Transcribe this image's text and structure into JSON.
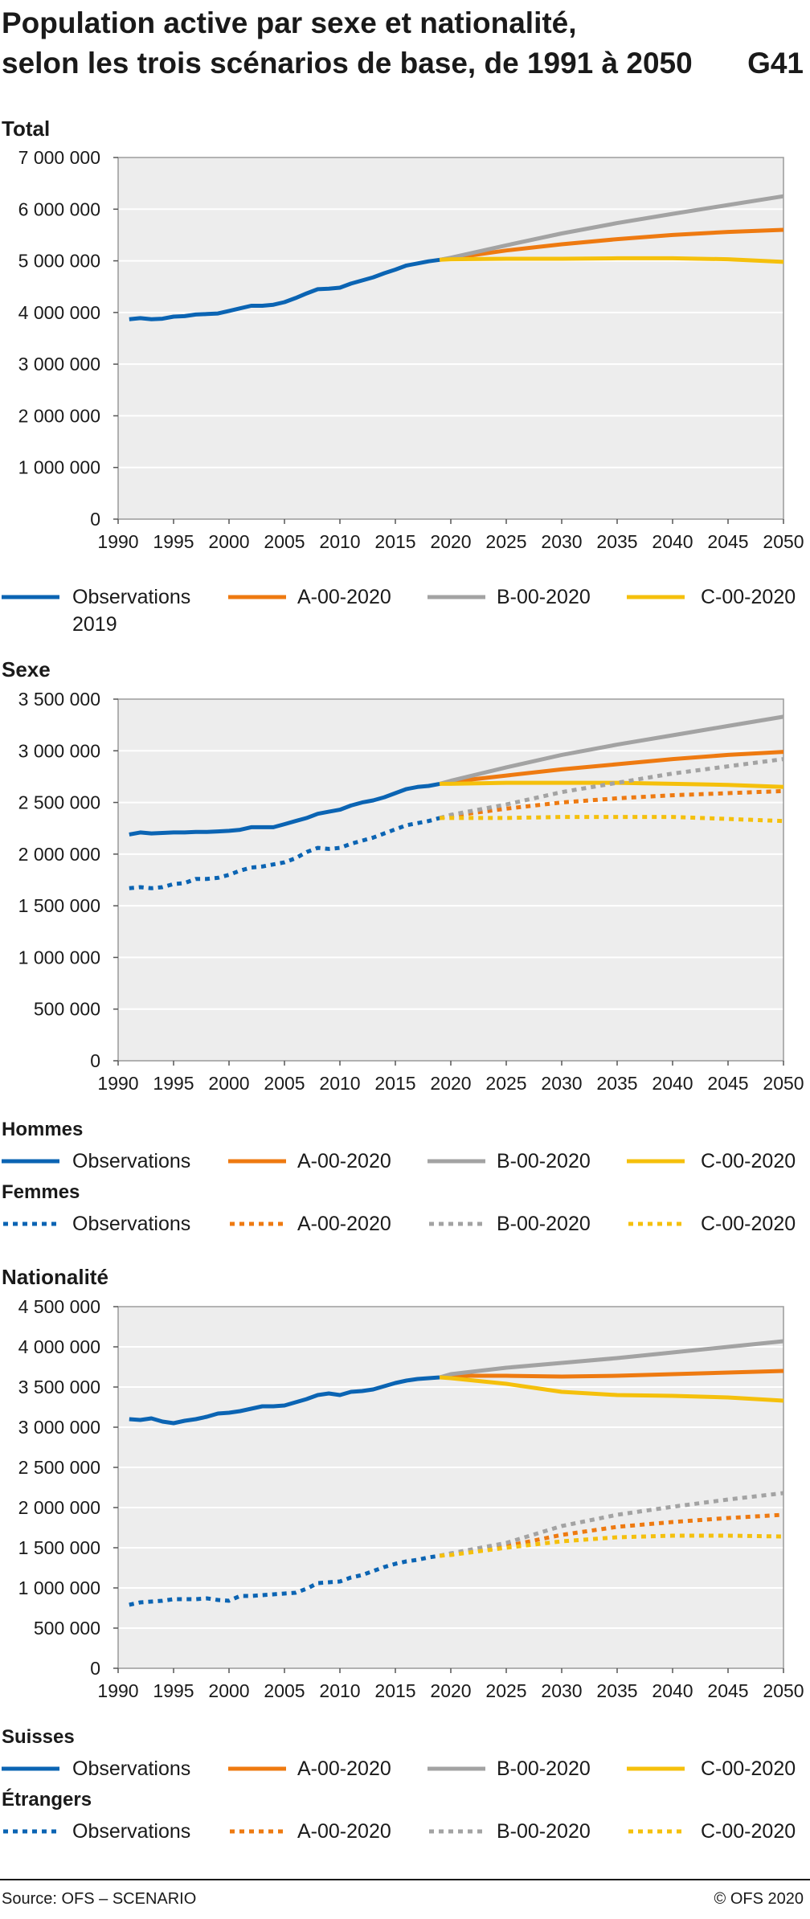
{
  "header": {
    "title_line1": "Population active par sexe et nationalité,",
    "title_line2": "selon les trois scénarios de base, de 1991 à 2050",
    "code": "G41"
  },
  "colors": {
    "observations": "#0b64b3",
    "A": "#ee7a11",
    "B": "#a3a3a3",
    "C": "#f5c00c",
    "plot_bg": "#ededed",
    "grid": "#ffffff"
  },
  "chart_data": [
    {
      "type": "line",
      "title": "Total",
      "xlim": [
        1990,
        2050
      ],
      "ylim": [
        0,
        7000000
      ],
      "x_ticks": [
        1990,
        1995,
        2000,
        2005,
        2010,
        2015,
        2020,
        2025,
        2030,
        2035,
        2040,
        2045,
        2050
      ],
      "x_tick_labels": [
        "1990",
        "1995",
        "2000",
        "2005",
        "2010",
        "2015",
        "2020",
        "2025",
        "2030",
        "2035",
        "2040",
        "2045",
        "2050"
      ],
      "y_ticks": [
        0,
        1000000,
        2000000,
        3000000,
        4000000,
        5000000,
        6000000,
        7000000
      ],
      "y_tick_labels": [
        "0",
        "1 000 000",
        "2 000 000",
        "3 000 000",
        "4 000 000",
        "5 000 000",
        "6 000 000",
        "7 000 000"
      ],
      "grid": true,
      "series": [
        {
          "name": "Observations 2019",
          "style": "solid",
          "color": "observations",
          "x": [
            1991,
            1992,
            1993,
            1994,
            1995,
            1996,
            1997,
            1998,
            1999,
            2000,
            2001,
            2002,
            2003,
            2004,
            2005,
            2006,
            2007,
            2008,
            2009,
            2010,
            2011,
            2012,
            2013,
            2014,
            2015,
            2016,
            2017,
            2018,
            2019
          ],
          "y": [
            3870000,
            3890000,
            3870000,
            3880000,
            3920000,
            3930000,
            3960000,
            3970000,
            3980000,
            4030000,
            4080000,
            4130000,
            4130000,
            4150000,
            4200000,
            4280000,
            4370000,
            4450000,
            4460000,
            4480000,
            4560000,
            4620000,
            4680000,
            4760000,
            4830000,
            4910000,
            4950000,
            4990000,
            5020000
          ]
        },
        {
          "name": "A-00-2020",
          "style": "solid",
          "color": "A",
          "x": [
            2019,
            2020,
            2025,
            2030,
            2035,
            2040,
            2045,
            2050
          ],
          "y": [
            5020000,
            5050000,
            5200000,
            5320000,
            5420000,
            5500000,
            5560000,
            5600000
          ]
        },
        {
          "name": "B-00-2020",
          "style": "solid",
          "color": "B",
          "x": [
            2019,
            2020,
            2025,
            2030,
            2035,
            2040,
            2045,
            2050
          ],
          "y": [
            5020000,
            5060000,
            5300000,
            5530000,
            5730000,
            5910000,
            6080000,
            6250000
          ]
        },
        {
          "name": "C-00-2020",
          "style": "solid",
          "color": "C",
          "x": [
            2019,
            2020,
            2025,
            2030,
            2035,
            2040,
            2045,
            2050
          ],
          "y": [
            5020000,
            5030000,
            5040000,
            5040000,
            5050000,
            5050000,
            5030000,
            4980000
          ]
        }
      ]
    },
    {
      "type": "line",
      "title": "Sexe",
      "xlim": [
        1990,
        2050
      ],
      "ylim": [
        0,
        3500000
      ],
      "x_ticks": [
        1990,
        1995,
        2000,
        2005,
        2010,
        2015,
        2020,
        2025,
        2030,
        2035,
        2040,
        2045,
        2050
      ],
      "x_tick_labels": [
        "1990",
        "1995",
        "2000",
        "2005",
        "2010",
        "2015",
        "2020",
        "2025",
        "2030",
        "2035",
        "2040",
        "2045",
        "2050"
      ],
      "y_ticks": [
        0,
        500000,
        1000000,
        1500000,
        2000000,
        2500000,
        3000000,
        3500000
      ],
      "y_tick_labels": [
        "0",
        "500 000",
        "1 000 000",
        "1 500 000",
        "2 000 000",
        "2 500 000",
        "3 000 000",
        "3 500 000"
      ],
      "grid": true,
      "series": [
        {
          "name": "Hommes – Observations",
          "style": "solid",
          "color": "observations",
          "x": [
            1991,
            1992,
            1993,
            1994,
            1995,
            1996,
            1997,
            1998,
            1999,
            2000,
            2001,
            2002,
            2003,
            2004,
            2005,
            2006,
            2007,
            2008,
            2009,
            2010,
            2011,
            2012,
            2013,
            2014,
            2015,
            2016,
            2017,
            2018,
            2019
          ],
          "y": [
            2190000,
            2210000,
            2200000,
            2205000,
            2210000,
            2210000,
            2215000,
            2215000,
            2220000,
            2225000,
            2235000,
            2260000,
            2260000,
            2260000,
            2290000,
            2320000,
            2350000,
            2390000,
            2410000,
            2430000,
            2470000,
            2500000,
            2520000,
            2550000,
            2590000,
            2630000,
            2650000,
            2660000,
            2680000
          ]
        },
        {
          "name": "Hommes – A-00-2020",
          "style": "solid",
          "color": "A",
          "x": [
            2019,
            2020,
            2025,
            2030,
            2035,
            2040,
            2045,
            2050
          ],
          "y": [
            2680000,
            2700000,
            2760000,
            2820000,
            2870000,
            2920000,
            2960000,
            2990000
          ]
        },
        {
          "name": "Hommes – B-00-2020",
          "style": "solid",
          "color": "B",
          "x": [
            2019,
            2020,
            2025,
            2030,
            2035,
            2040,
            2045,
            2050
          ],
          "y": [
            2680000,
            2710000,
            2840000,
            2960000,
            3060000,
            3150000,
            3240000,
            3330000
          ]
        },
        {
          "name": "Hommes – C-00-2020",
          "style": "solid",
          "color": "C",
          "x": [
            2019,
            2020,
            2025,
            2030,
            2035,
            2040,
            2045,
            2050
          ],
          "y": [
            2680000,
            2680000,
            2690000,
            2690000,
            2690000,
            2680000,
            2670000,
            2650000
          ]
        },
        {
          "name": "Femmes – Observations",
          "style": "dotted",
          "color": "observations",
          "x": [
            1991,
            1992,
            1993,
            1994,
            1995,
            1996,
            1997,
            1998,
            1999,
            2000,
            2001,
            2002,
            2003,
            2004,
            2005,
            2006,
            2007,
            2008,
            2009,
            2010,
            2011,
            2012,
            2013,
            2014,
            2015,
            2016,
            2017,
            2018,
            2019
          ],
          "y": [
            1670000,
            1680000,
            1670000,
            1680000,
            1710000,
            1720000,
            1760000,
            1760000,
            1770000,
            1800000,
            1840000,
            1870000,
            1880000,
            1900000,
            1920000,
            1960000,
            2020000,
            2060000,
            2050000,
            2060000,
            2100000,
            2130000,
            2160000,
            2200000,
            2240000,
            2280000,
            2300000,
            2320000,
            2350000
          ]
        },
        {
          "name": "Femmes – A-00-2020",
          "style": "dotted",
          "color": "A",
          "x": [
            2019,
            2020,
            2025,
            2030,
            2035,
            2040,
            2045,
            2050
          ],
          "y": [
            2350000,
            2370000,
            2440000,
            2500000,
            2540000,
            2570000,
            2590000,
            2610000
          ]
        },
        {
          "name": "Femmes – B-00-2020",
          "style": "dotted",
          "color": "B",
          "x": [
            2019,
            2020,
            2025,
            2030,
            2035,
            2040,
            2045,
            2050
          ],
          "y": [
            2350000,
            2380000,
            2480000,
            2600000,
            2690000,
            2780000,
            2850000,
            2920000
          ]
        },
        {
          "name": "Femmes – C-00-2020",
          "style": "dotted",
          "color": "C",
          "x": [
            2019,
            2020,
            2025,
            2030,
            2035,
            2040,
            2045,
            2050
          ],
          "y": [
            2350000,
            2350000,
            2350000,
            2360000,
            2360000,
            2360000,
            2340000,
            2320000
          ]
        }
      ]
    },
    {
      "type": "line",
      "title": "Nationalité",
      "xlim": [
        1990,
        2050
      ],
      "ylim": [
        0,
        4500000
      ],
      "x_ticks": [
        1990,
        1995,
        2000,
        2005,
        2010,
        2015,
        2020,
        2025,
        2030,
        2035,
        2040,
        2045,
        2050
      ],
      "x_tick_labels": [
        "1990",
        "1995",
        "2000",
        "2005",
        "2010",
        "2015",
        "2020",
        "2025",
        "2030",
        "2035",
        "2040",
        "2045",
        "2050"
      ],
      "y_ticks": [
        0,
        500000,
        1000000,
        1500000,
        2000000,
        2500000,
        3000000,
        3500000,
        4000000,
        4500000
      ],
      "y_tick_labels": [
        "0",
        "500 000",
        "1 000 000",
        "1 500 000",
        "2 000 000",
        "2 500 000",
        "3 000 000",
        "3 500 000",
        "4 000 000",
        "4 500 000"
      ],
      "grid": true,
      "series": [
        {
          "name": "Suisses – Observations",
          "style": "solid",
          "color": "observations",
          "x": [
            1991,
            1992,
            1993,
            1994,
            1995,
            1996,
            1997,
            1998,
            1999,
            2000,
            2001,
            2002,
            2003,
            2004,
            2005,
            2006,
            2007,
            2008,
            2009,
            2010,
            2011,
            2012,
            2013,
            2014,
            2015,
            2016,
            2017,
            2018,
            2019
          ],
          "y": [
            3100000,
            3090000,
            3110000,
            3070000,
            3050000,
            3080000,
            3100000,
            3130000,
            3170000,
            3180000,
            3200000,
            3230000,
            3260000,
            3260000,
            3270000,
            3310000,
            3350000,
            3400000,
            3420000,
            3400000,
            3440000,
            3450000,
            3470000,
            3510000,
            3550000,
            3580000,
            3600000,
            3610000,
            3620000
          ]
        },
        {
          "name": "Suisses – A-00-2020",
          "style": "solid",
          "color": "A",
          "x": [
            2019,
            2020,
            2025,
            2030,
            2035,
            2040,
            2045,
            2050
          ],
          "y": [
            3620000,
            3640000,
            3640000,
            3630000,
            3640000,
            3660000,
            3680000,
            3700000
          ]
        },
        {
          "name": "Suisses – B-00-2020",
          "style": "solid",
          "color": "B",
          "x": [
            2019,
            2020,
            2025,
            2030,
            2035,
            2040,
            2045,
            2050
          ],
          "y": [
            3620000,
            3660000,
            3740000,
            3800000,
            3860000,
            3930000,
            4000000,
            4070000
          ]
        },
        {
          "name": "Suisses – C-00-2020",
          "style": "solid",
          "color": "C",
          "x": [
            2019,
            2020,
            2025,
            2030,
            2035,
            2040,
            2045,
            2050
          ],
          "y": [
            3620000,
            3610000,
            3540000,
            3440000,
            3400000,
            3390000,
            3370000,
            3330000
          ]
        },
        {
          "name": "Étrangers – Observations",
          "style": "dotted",
          "color": "observations",
          "x": [
            1991,
            1992,
            1993,
            1994,
            1995,
            1996,
            1997,
            1998,
            1999,
            2000,
            2001,
            2002,
            2003,
            2004,
            2005,
            2006,
            2007,
            2008,
            2009,
            2010,
            2011,
            2012,
            2013,
            2014,
            2015,
            2016,
            2017,
            2018,
            2019
          ],
          "y": [
            790000,
            820000,
            830000,
            840000,
            860000,
            860000,
            860000,
            870000,
            850000,
            840000,
            900000,
            900000,
            910000,
            920000,
            930000,
            940000,
            990000,
            1060000,
            1070000,
            1080000,
            1130000,
            1160000,
            1210000,
            1260000,
            1300000,
            1330000,
            1350000,
            1380000,
            1400000
          ]
        },
        {
          "name": "Étrangers – A-00-2020",
          "style": "dotted",
          "color": "A",
          "x": [
            2019,
            2020,
            2025,
            2030,
            2035,
            2040,
            2045,
            2050
          ],
          "y": [
            1400000,
            1420000,
            1520000,
            1660000,
            1760000,
            1820000,
            1870000,
            1910000
          ]
        },
        {
          "name": "Étrangers – B-00-2020",
          "style": "dotted",
          "color": "B",
          "x": [
            2019,
            2020,
            2025,
            2030,
            2035,
            2040,
            2045,
            2050
          ],
          "y": [
            1400000,
            1430000,
            1560000,
            1770000,
            1910000,
            2010000,
            2100000,
            2180000
          ]
        },
        {
          "name": "Étrangers – C-00-2020",
          "style": "dotted",
          "color": "C",
          "x": [
            2019,
            2020,
            2025,
            2030,
            2035,
            2040,
            2045,
            2050
          ],
          "y": [
            1400000,
            1410000,
            1500000,
            1580000,
            1630000,
            1650000,
            1650000,
            1640000
          ]
        }
      ]
    }
  ],
  "legend_total": {
    "observations": "Observations",
    "observations_sub": "2019",
    "A": "A-00-2020",
    "B": "B-00-2020",
    "C": "C-00-2020"
  },
  "legend_sexe": {
    "group1": "Hommes",
    "group2": "Femmes",
    "observations": "Observations",
    "A": "A-00-2020",
    "B": "B-00-2020",
    "C": "C-00-2020"
  },
  "legend_nationalite": {
    "group1": "Suisses",
    "group2": "Étrangers",
    "observations": "Observations",
    "A": "A-00-2020",
    "B": "B-00-2020",
    "C": "C-00-2020"
  },
  "footer": {
    "source": "Source: OFS – SCENARIO",
    "copyright": "© OFS 2020"
  }
}
